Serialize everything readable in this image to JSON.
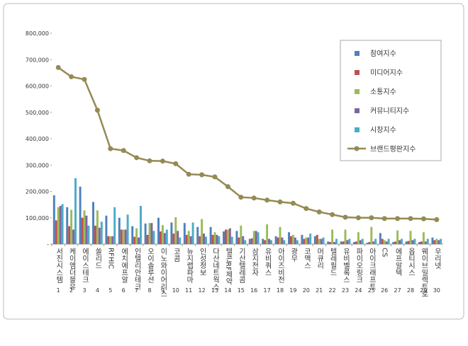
{
  "chart_data": {
    "type": "bar",
    "categories": [
      "서진시스템",
      "케이엠더블유",
      "에이스테크",
      "쏠리드",
      "RFHIC",
      "에치에프알",
      "인텔리안테크",
      "오이솔루션",
      "이노와이어리스",
      "코콤",
      "뉴지랩파마",
      "인성정보",
      "다산네트웍스",
      "텔콘RF제약",
      "기산텔레콤",
      "삼지전자",
      "유비쿼스",
      "아이즈비전",
      "광무",
      "코맥스",
      "머큐리",
      "텔레필드",
      "유비벨록스",
      "파이오링크",
      "아이크래프트",
      "CS",
      "에프알텍",
      "옵티시스",
      "웨이브일렉트로",
      "우리넷"
    ],
    "ranks": [
      1,
      2,
      3,
      4,
      5,
      6,
      7,
      8,
      9,
      10,
      11,
      12,
      13,
      14,
      15,
      16,
      17,
      18,
      19,
      20,
      21,
      22,
      23,
      24,
      25,
      26,
      27,
      28,
      29,
      30
    ],
    "series": [
      {
        "name": "참여지수",
        "color": "#4f81bd",
        "values": [
          185000,
          140000,
          218000,
          160000,
          108000,
          100000,
          68000,
          78000,
          100000,
          82000,
          80000,
          65000,
          65000,
          48000,
          50000,
          20000,
          20000,
          30000,
          45000,
          35000,
          30000,
          10000,
          10000,
          8000,
          5000,
          42000,
          8000,
          10000,
          8000,
          25000
        ]
      },
      {
        "name": "미디어지수",
        "color": "#c0504d",
        "values": [
          90000,
          68000,
          100000,
          70000,
          30000,
          55000,
          28000,
          35000,
          48000,
          40000,
          35000,
          30000,
          35000,
          55000,
          25000,
          22000,
          15000,
          25000,
          30000,
          20000,
          35000,
          8000,
          10000,
          10000,
          8000,
          20000,
          10000,
          12000,
          10000,
          15000
        ]
      },
      {
        "name": "소통지수",
        "color": "#9bbb59",
        "values": [
          140000,
          130000,
          128000,
          128000,
          30000,
          55000,
          60000,
          80000,
          72000,
          102000,
          50000,
          95000,
          45000,
          55000,
          70000,
          50000,
          75000,
          65000,
          35000,
          25000,
          20000,
          55000,
          55000,
          45000,
          65000,
          15000,
          52000,
          50000,
          45000,
          20000
        ]
      },
      {
        "name": "커뮤니티지수",
        "color": "#8064a2",
        "values": [
          145000,
          55000,
          108000,
          62000,
          30000,
          55000,
          25000,
          80000,
          42000,
          50000,
          30000,
          40000,
          35000,
          60000,
          30000,
          50000,
          20000,
          25000,
          25000,
          25000,
          20000,
          8000,
          15000,
          15000,
          10000,
          10000,
          15000,
          15000,
          10000,
          15000
        ]
      },
      {
        "name": "시장지수",
        "color": "#4bacc6",
        "values": [
          152000,
          250000,
          70000,
          85000,
          140000,
          112000,
          145000,
          50000,
          55000,
          25000,
          82000,
          28000,
          30000,
          28000,
          15000,
          45000,
          15000,
          15000,
          15000,
          40000,
          25000,
          20000,
          20000,
          20000,
          20000,
          20000,
          20000,
          20000,
          20000,
          20000
        ]
      },
      {
        "name": "브랜드평판지수",
        "color": "#948a54",
        "type": "line",
        "values": [
          670000,
          635000,
          625000,
          508000,
          362000,
          355000,
          328000,
          316000,
          315000,
          305000,
          265000,
          263000,
          255000,
          218000,
          178000,
          175000,
          167000,
          160000,
          155000,
          135000,
          122000,
          112000,
          102000,
          100000,
          100000,
          97000,
          97000,
          97000,
          96000,
          93000
        ]
      }
    ],
    "ylim": [
      0,
      800000
    ],
    "yticks": [
      {
        "value": 0,
        "label": "-"
      },
      {
        "value": 100000,
        "label": "100,000"
      },
      {
        "value": 200000,
        "label": "200,000"
      },
      {
        "value": 300000,
        "label": "300,000"
      },
      {
        "value": 400000,
        "label": "400,000"
      },
      {
        "value": 500000,
        "label": "500,000"
      },
      {
        "value": 600000,
        "label": "600,000"
      },
      {
        "value": 700000,
        "label": "700,000"
      },
      {
        "value": 800000,
        "label": "800,000"
      }
    ],
    "legend": "upper right"
  }
}
